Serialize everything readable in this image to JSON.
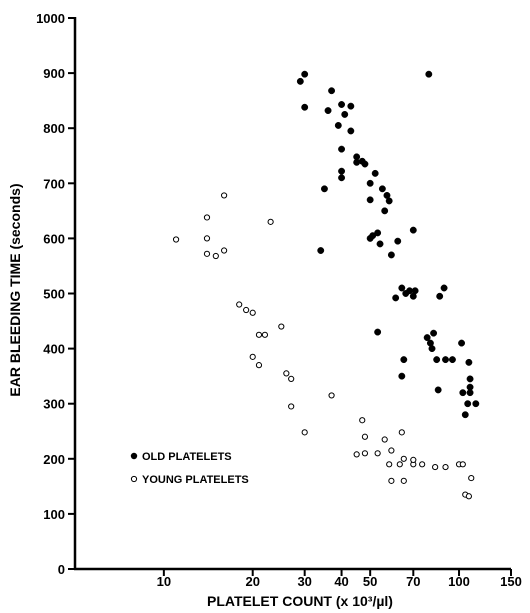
{
  "chart_data": {
    "type": "scatter",
    "xlabel": "PLATELET COUNT (x 10³/µl)",
    "ylabel": "EAR BLEEDING TIME (seconds)",
    "x_scale": "log",
    "xlim": [
      5,
      150
    ],
    "ylim": [
      0,
      1000
    ],
    "x_ticks": [
      10,
      20,
      30,
      40,
      50,
      70,
      100,
      150
    ],
    "y_ticks": [
      0,
      100,
      200,
      300,
      400,
      500,
      600,
      700,
      800,
      900,
      1000
    ],
    "grid": false,
    "legend_position": "bottom-left",
    "series": [
      {
        "name": "OLD PLATELETS",
        "marker": "filled-circle",
        "color": "#000000",
        "points": [
          [
            29,
            885
          ],
          [
            30,
            898
          ],
          [
            30,
            838
          ],
          [
            34,
            578
          ],
          [
            35,
            690
          ],
          [
            36,
            832
          ],
          [
            37,
            868
          ],
          [
            39,
            805
          ],
          [
            40,
            843
          ],
          [
            40,
            762
          ],
          [
            40,
            722
          ],
          [
            40,
            710
          ],
          [
            41,
            825
          ],
          [
            43,
            840
          ],
          [
            43,
            795
          ],
          [
            45,
            748
          ],
          [
            45,
            738
          ],
          [
            47,
            740
          ],
          [
            48,
            735
          ],
          [
            50,
            700
          ],
          [
            50,
            670
          ],
          [
            50,
            600
          ],
          [
            51,
            605
          ],
          [
            52,
            718
          ],
          [
            53,
            610
          ],
          [
            53,
            430
          ],
          [
            54,
            590
          ],
          [
            55,
            690
          ],
          [
            56,
            650
          ],
          [
            57,
            678
          ],
          [
            58,
            668
          ],
          [
            59,
            570
          ],
          [
            61,
            492
          ],
          [
            62,
            595
          ],
          [
            64,
            350
          ],
          [
            64,
            510
          ],
          [
            65,
            380
          ],
          [
            66,
            500
          ],
          [
            68,
            505
          ],
          [
            70,
            495
          ],
          [
            70,
            615
          ],
          [
            71,
            505
          ],
          [
            78,
            420
          ],
          [
            79,
            898
          ],
          [
            80,
            410
          ],
          [
            81,
            400
          ],
          [
            82,
            428
          ],
          [
            84,
            380
          ],
          [
            85,
            325
          ],
          [
            86,
            495
          ],
          [
            89,
            510
          ],
          [
            90,
            380
          ],
          [
            95,
            380
          ],
          [
            102,
            410
          ],
          [
            103,
            320
          ],
          [
            105,
            280
          ],
          [
            107,
            300
          ],
          [
            108,
            375
          ],
          [
            109,
            345
          ],
          [
            109,
            330
          ],
          [
            109,
            320
          ],
          [
            114,
            300
          ]
        ]
      },
      {
        "name": "YOUNG PLATELETS",
        "marker": "open-circle",
        "color": "#000000",
        "points": [
          [
            11,
            598
          ],
          [
            14,
            638
          ],
          [
            14,
            600
          ],
          [
            14,
            572
          ],
          [
            15,
            568
          ],
          [
            16,
            578
          ],
          [
            16,
            678
          ],
          [
            18,
            480
          ],
          [
            19,
            470
          ],
          [
            20,
            465
          ],
          [
            20,
            385
          ],
          [
            21,
            425
          ],
          [
            21,
            370
          ],
          [
            22,
            425
          ],
          [
            23,
            630
          ],
          [
            25,
            440
          ],
          [
            26,
            355
          ],
          [
            27,
            345
          ],
          [
            27,
            295
          ],
          [
            30,
            248
          ],
          [
            37,
            315
          ],
          [
            45,
            208
          ],
          [
            47,
            270
          ],
          [
            48,
            240
          ],
          [
            48,
            210
          ],
          [
            53,
            210
          ],
          [
            56,
            235
          ],
          [
            58,
            190
          ],
          [
            59,
            215
          ],
          [
            59,
            160
          ],
          [
            63,
            190
          ],
          [
            64,
            248
          ],
          [
            65,
            200
          ],
          [
            65,
            160
          ],
          [
            70,
            190
          ],
          [
            70,
            198
          ],
          [
            75,
            190
          ],
          [
            83,
            185
          ],
          [
            90,
            185
          ],
          [
            100,
            190
          ],
          [
            103,
            190
          ],
          [
            105,
            135
          ],
          [
            108,
            132
          ],
          [
            110,
            165
          ]
        ]
      }
    ]
  }
}
